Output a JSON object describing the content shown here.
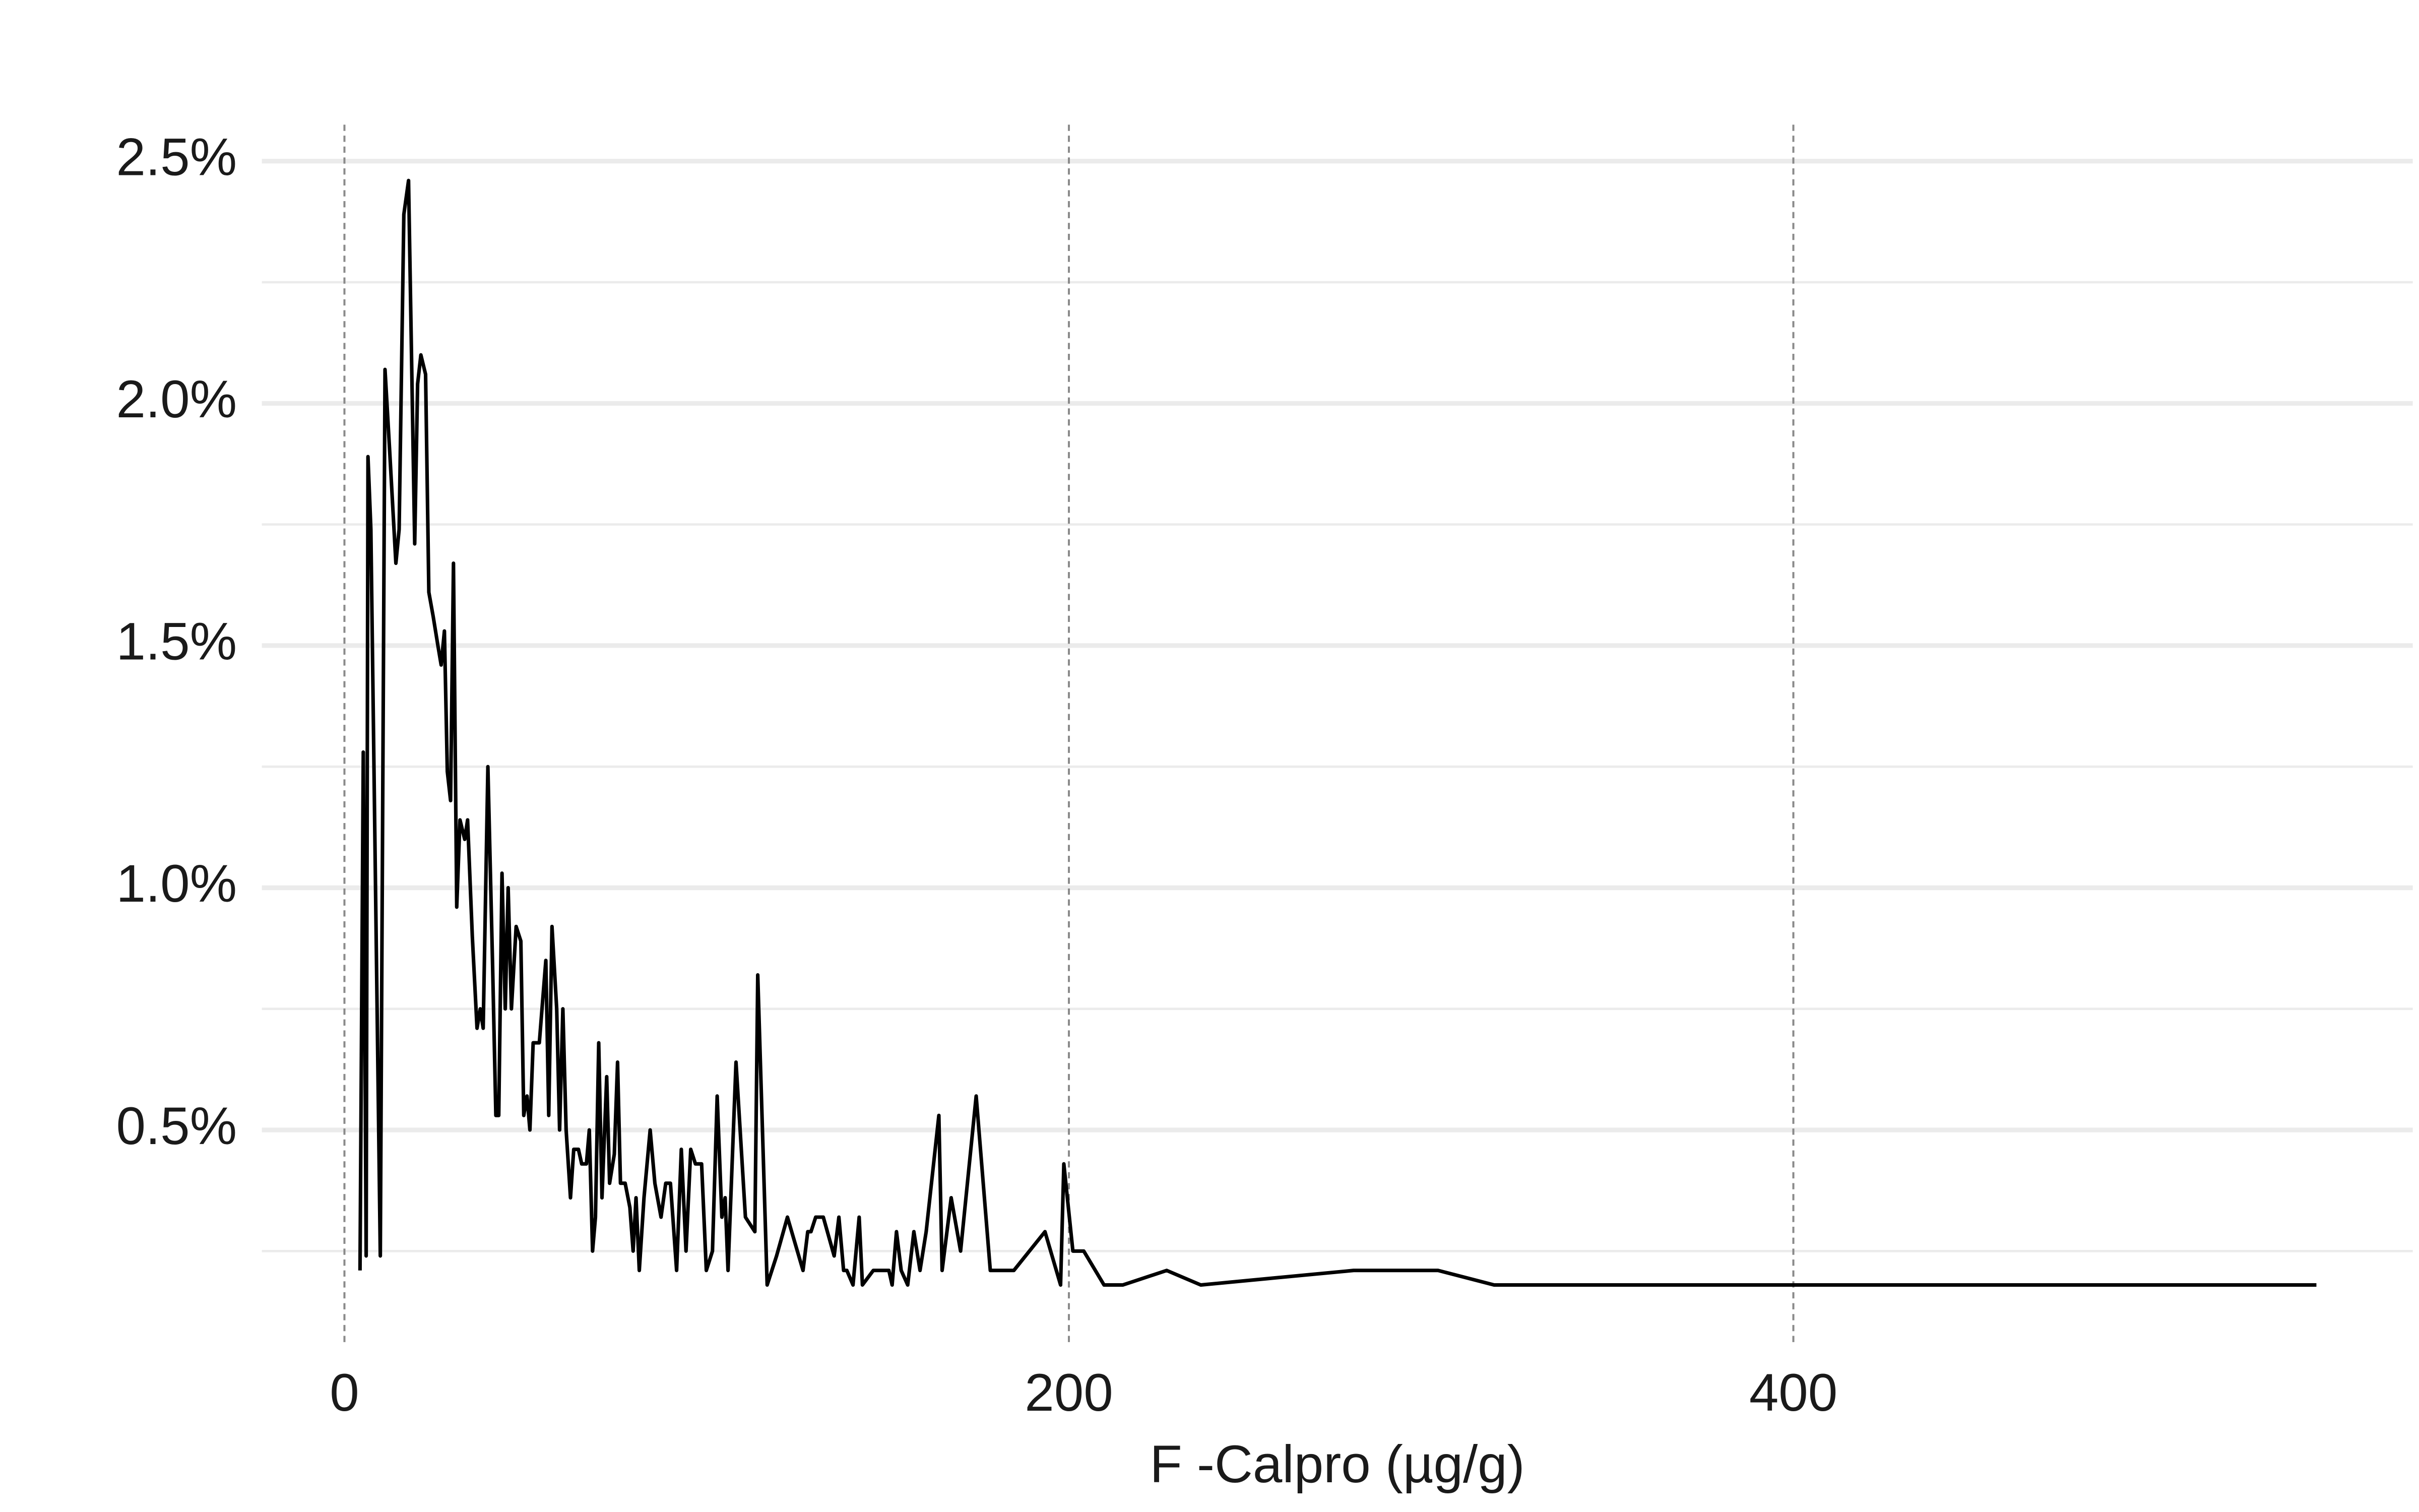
{
  "chart_data": {
    "type": "line",
    "xlabel": "F -Calpro (µg/g)",
    "x": [
      4.3,
      5.2,
      6.0,
      6.5,
      7.3,
      9.9,
      11.2,
      12.5,
      14.2,
      15.1,
      16.4,
      17.7,
      19.4,
      20.2,
      21.1,
      22.4,
      23.3,
      24.5,
      25.8,
      26.7,
      27.6,
      28.4,
      29.3,
      30.1,
      31.0,
      31.9,
      33.2,
      34.0,
      35.3,
      36.6,
      37.5,
      38.3,
      39.6,
      40.9,
      41.8,
      42.6,
      43.5,
      44.4,
      45.2,
      46.1,
      47.4,
      48.7,
      49.5,
      50.4,
      51.2,
      52.1,
      53.8,
      55.6,
      56.4,
      57.3,
      58.6,
      59.4,
      60.3,
      61.2,
      62.4,
      63.3,
      64.6,
      65.5,
      66.8,
      67.6,
      68.5,
      69.3,
      70.2,
      71.1,
      72.4,
      73.2,
      74.5,
      75.4,
      76.2,
      77.5,
      78.8,
      79.7,
      80.5,
      81.4,
      82.7,
      84.4,
      85.7,
      87.4,
      88.7,
      90.0,
      91.7,
      93.0,
      94.3,
      95.6,
      96.9,
      98.6,
      99.9,
      101.6,
      102.9,
      104.2,
      105.1,
      105.9,
      108.1,
      110.7,
      113.3,
      114.1,
      116.7,
      119.3,
      122.3,
      126.6,
      127.9,
      128.8,
      130.1,
      132.2,
      135.2,
      136.5,
      137.8,
      138.7,
      140.4,
      142.1,
      143.0,
      146.0,
      150.3,
      151.2,
      152.4,
      153.7,
      155.5,
      157.2,
      158.9,
      160.6,
      164.1,
      165.0,
      167.5,
      170.1,
      174.4,
      178.3,
      184.8,
      193.4,
      197.7,
      198.6,
      201.1,
      204.1,
      209.7,
      214.9,
      227.0,
      236.4,
      278.6,
      301.9,
      317.4,
      544.4
    ],
    "values": [
      0.21,
      1.28,
      0.24,
      1.89,
      1.74,
      0.24,
      2.07,
      1.9,
      1.67,
      1.74,
      2.39,
      2.46,
      1.71,
      2.04,
      2.1,
      2.06,
      1.61,
      1.56,
      1.5,
      1.46,
      1.53,
      1.24,
      1.18,
      1.67,
      0.96,
      1.14,
      1.1,
      1.14,
      0.9,
      0.71,
      0.75,
      0.71,
      1.25,
      0.84,
      0.53,
      0.53,
      1.03,
      0.75,
      1.0,
      0.75,
      0.92,
      0.89,
      0.53,
      0.57,
      0.5,
      0.68,
      0.68,
      0.85,
      0.53,
      0.92,
      0.75,
      0.5,
      0.75,
      0.5,
      0.36,
      0.46,
      0.46,
      0.43,
      0.43,
      0.5,
      0.25,
      0.32,
      0.68,
      0.36,
      0.61,
      0.39,
      0.45,
      0.64,
      0.39,
      0.39,
      0.34,
      0.25,
      0.36,
      0.21,
      0.36,
      0.5,
      0.39,
      0.32,
      0.39,
      0.39,
      0.21,
      0.46,
      0.25,
      0.46,
      0.43,
      0.43,
      0.21,
      0.25,
      0.57,
      0.32,
      0.36,
      0.21,
      0.64,
      0.32,
      0.29,
      0.82,
      0.18,
      0.24,
      0.32,
      0.21,
      0.29,
      0.29,
      0.32,
      0.32,
      0.24,
      0.32,
      0.21,
      0.21,
      0.18,
      0.32,
      0.18,
      0.21,
      0.21,
      0.18,
      0.29,
      0.21,
      0.18,
      0.29,
      0.21,
      0.29,
      0.53,
      0.21,
      0.36,
      0.25,
      0.57,
      0.21,
      0.21,
      0.29,
      0.18,
      0.43,
      0.25,
      0.25,
      0.18,
      0.18,
      0.21,
      0.18,
      0.21,
      0.21,
      0.18,
      0.18
    ],
    "color": "#000000",
    "xlim": [
      -22.8,
      571
    ],
    "xticks": [
      0,
      200,
      400
    ],
    "ylim": [
      0.12,
      2.63
    ],
    "yticks": [
      {
        "value": 0.5,
        "label": "0.5%"
      },
      {
        "value": 1.0,
        "label": "1.0%"
      },
      {
        "value": 1.5,
        "label": "1.5%"
      },
      {
        "value": 2.0,
        "label": "2.0%"
      },
      {
        "value": 2.5,
        "label": "2.5%"
      }
    ],
    "yminorticks": [
      0.25,
      0.75,
      1.25,
      1.75,
      2.25
    ],
    "grid": true
  }
}
